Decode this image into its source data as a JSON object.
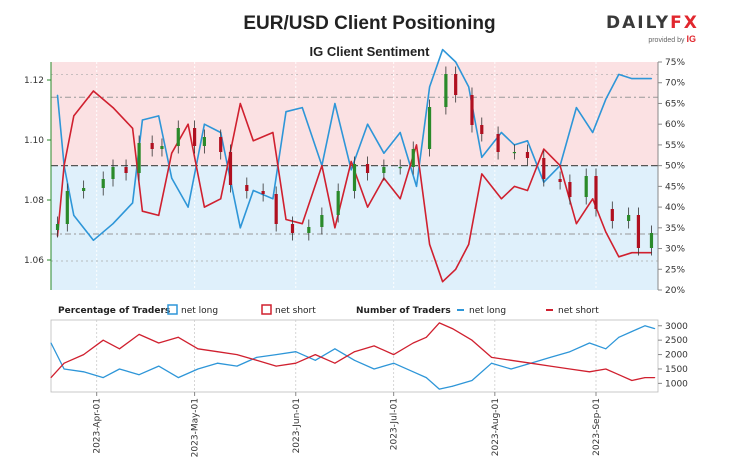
{
  "header": {
    "title": "EUR/USD Client Positioning",
    "subtitle": "IG Client Sentiment",
    "logo_main_a": "DAILY",
    "logo_main_b": "FX",
    "logo_sub": "provided by",
    "logo_ig": "IG"
  },
  "legend": {
    "pct_title": "Percentage of Traders",
    "pct_long": "net long",
    "pct_short": "net short",
    "num_title": "Number of Traders",
    "num_long": "net long",
    "num_short": "net short"
  },
  "colors": {
    "long": "#2e96d8",
    "short": "#d0202f",
    "long_fill": "#dff0fb",
    "short_fill": "#fbe1e3",
    "candle_up": "#2a8a2a",
    "candle_down": "#b01020"
  },
  "chart_data": [
    {
      "type": "line",
      "title": "EUR/USD Client Positioning",
      "subtitle": "IG Client Sentiment",
      "y_left_ticks": [
        "1.06",
        "1.08",
        "1.10",
        "1.12"
      ],
      "y_left_range": [
        1.05,
        1.126
      ],
      "y_right_ticks": [
        "20%",
        "25%",
        "30%",
        "35%",
        "40%",
        "45%",
        "50%",
        "55%",
        "60%",
        "65%",
        "70%",
        "75%"
      ],
      "y_right_range": [
        20,
        75
      ],
      "x_range": [
        "2023-03-18",
        "2023-09-20"
      ],
      "price_close": [
        {
          "date": "2023-03-20",
          "v": 1.072
        },
        {
          "date": "2023-03-23",
          "v": 1.083
        },
        {
          "date": "2023-03-28",
          "v": 1.084
        },
        {
          "date": "2023-04-03",
          "v": 1.087
        },
        {
          "date": "2023-04-06",
          "v": 1.091
        },
        {
          "date": "2023-04-10",
          "v": 1.089
        },
        {
          "date": "2023-04-14",
          "v": 1.099
        },
        {
          "date": "2023-04-18",
          "v": 1.097
        },
        {
          "date": "2023-04-21",
          "v": 1.098
        },
        {
          "date": "2023-04-26",
          "v": 1.104
        },
        {
          "date": "2023-05-01",
          "v": 1.098
        },
        {
          "date": "2023-05-04",
          "v": 1.101
        },
        {
          "date": "2023-05-09",
          "v": 1.096
        },
        {
          "date": "2023-05-12",
          "v": 1.085
        },
        {
          "date": "2023-05-17",
          "v": 1.083
        },
        {
          "date": "2023-05-22",
          "v": 1.082
        },
        {
          "date": "2023-05-26",
          "v": 1.072
        },
        {
          "date": "2023-05-31",
          "v": 1.069
        },
        {
          "date": "2023-06-05",
          "v": 1.071
        },
        {
          "date": "2023-06-09",
          "v": 1.075
        },
        {
          "date": "2023-06-14",
          "v": 1.083
        },
        {
          "date": "2023-06-19",
          "v": 1.092
        },
        {
          "date": "2023-06-23",
          "v": 1.089
        },
        {
          "date": "2023-06-28",
          "v": 1.091
        },
        {
          "date": "2023-07-03",
          "v": 1.091
        },
        {
          "date": "2023-07-07",
          "v": 1.097
        },
        {
          "date": "2023-07-12",
          "v": 1.111
        },
        {
          "date": "2023-07-17",
          "v": 1.122
        },
        {
          "date": "2023-07-20",
          "v": 1.115
        },
        {
          "date": "2023-07-25",
          "v": 1.105
        },
        {
          "date": "2023-07-28",
          "v": 1.102
        },
        {
          "date": "2023-08-02",
          "v": 1.096
        },
        {
          "date": "2023-08-07",
          "v": 1.096
        },
        {
          "date": "2023-08-11",
          "v": 1.094
        },
        {
          "date": "2023-08-16",
          "v": 1.087
        },
        {
          "date": "2023-08-21",
          "v": 1.086
        },
        {
          "date": "2023-08-24",
          "v": 1.081
        },
        {
          "date": "2023-08-29",
          "v": 1.088
        },
        {
          "date": "2023-09-01",
          "v": 1.077
        },
        {
          "date": "2023-09-06",
          "v": 1.073
        },
        {
          "date": "2023-09-11",
          "v": 1.075
        },
        {
          "date": "2023-09-14",
          "v": 1.064
        },
        {
          "date": "2023-09-18",
          "v": 1.069
        }
      ],
      "series": [
        {
          "name": "net long",
          "unit": "%",
          "values": [
            {
              "date": "2023-03-20",
              "v": 67
            },
            {
              "date": "2023-03-22",
              "v": 50
            },
            {
              "date": "2023-03-25",
              "v": 38
            },
            {
              "date": "2023-03-31",
              "v": 32
            },
            {
              "date": "2023-04-06",
              "v": 36
            },
            {
              "date": "2023-04-12",
              "v": 41
            },
            {
              "date": "2023-04-15",
              "v": 61
            },
            {
              "date": "2023-04-20",
              "v": 62
            },
            {
              "date": "2023-04-24",
              "v": 47
            },
            {
              "date": "2023-04-29",
              "v": 40
            },
            {
              "date": "2023-05-04",
              "v": 60
            },
            {
              "date": "2023-05-09",
              "v": 58
            },
            {
              "date": "2023-05-15",
              "v": 35
            },
            {
              "date": "2023-05-19",
              "v": 44
            },
            {
              "date": "2023-05-25",
              "v": 42
            },
            {
              "date": "2023-05-29",
              "v": 63
            },
            {
              "date": "2023-06-03",
              "v": 64
            },
            {
              "date": "2023-06-09",
              "v": 50
            },
            {
              "date": "2023-06-13",
              "v": 65
            },
            {
              "date": "2023-06-18",
              "v": 49
            },
            {
              "date": "2023-06-23",
              "v": 60
            },
            {
              "date": "2023-06-28",
              "v": 53
            },
            {
              "date": "2023-07-03",
              "v": 58
            },
            {
              "date": "2023-07-08",
              "v": 45
            },
            {
              "date": "2023-07-12",
              "v": 69
            },
            {
              "date": "2023-07-16",
              "v": 78
            },
            {
              "date": "2023-07-20",
              "v": 75
            },
            {
              "date": "2023-07-24",
              "v": 69
            },
            {
              "date": "2023-07-28",
              "v": 52
            },
            {
              "date": "2023-08-03",
              "v": 58
            },
            {
              "date": "2023-08-07",
              "v": 55
            },
            {
              "date": "2023-08-11",
              "v": 56
            },
            {
              "date": "2023-08-16",
              "v": 46
            },
            {
              "date": "2023-08-21",
              "v": 50
            },
            {
              "date": "2023-08-26",
              "v": 64
            },
            {
              "date": "2023-08-31",
              "v": 58
            },
            {
              "date": "2023-09-04",
              "v": 66
            },
            {
              "date": "2023-09-08",
              "v": 72
            },
            {
              "date": "2023-09-12",
              "v": 71
            },
            {
              "date": "2023-09-18",
              "v": 71
            }
          ]
        },
        {
          "name": "net short",
          "unit": "%",
          "values": [
            {
              "date": "2023-03-20",
              "v": 33
            },
            {
              "date": "2023-03-22",
              "v": 50
            },
            {
              "date": "2023-03-25",
              "v": 62
            },
            {
              "date": "2023-03-31",
              "v": 68
            },
            {
              "date": "2023-04-06",
              "v": 64
            },
            {
              "date": "2023-04-12",
              "v": 59
            },
            {
              "date": "2023-04-15",
              "v": 39
            },
            {
              "date": "2023-04-20",
              "v": 38
            },
            {
              "date": "2023-04-24",
              "v": 53
            },
            {
              "date": "2023-04-29",
              "v": 60
            },
            {
              "date": "2023-05-04",
              "v": 40
            },
            {
              "date": "2023-05-09",
              "v": 42
            },
            {
              "date": "2023-05-15",
              "v": 65
            },
            {
              "date": "2023-05-19",
              "v": 56
            },
            {
              "date": "2023-05-25",
              "v": 58
            },
            {
              "date": "2023-05-29",
              "v": 37
            },
            {
              "date": "2023-06-03",
              "v": 36
            },
            {
              "date": "2023-06-09",
              "v": 50
            },
            {
              "date": "2023-06-13",
              "v": 35
            },
            {
              "date": "2023-06-18",
              "v": 51
            },
            {
              "date": "2023-06-23",
              "v": 40
            },
            {
              "date": "2023-06-28",
              "v": 47
            },
            {
              "date": "2023-07-03",
              "v": 42
            },
            {
              "date": "2023-07-08",
              "v": 55
            },
            {
              "date": "2023-07-12",
              "v": 31
            },
            {
              "date": "2023-07-16",
              "v": 22
            },
            {
              "date": "2023-07-20",
              "v": 25
            },
            {
              "date": "2023-07-24",
              "v": 31
            },
            {
              "date": "2023-07-28",
              "v": 48
            },
            {
              "date": "2023-08-03",
              "v": 42
            },
            {
              "date": "2023-08-07",
              "v": 45
            },
            {
              "date": "2023-08-11",
              "v": 44
            },
            {
              "date": "2023-08-16",
              "v": 54
            },
            {
              "date": "2023-08-21",
              "v": 50
            },
            {
              "date": "2023-08-26",
              "v": 36
            },
            {
              "date": "2023-08-31",
              "v": 42
            },
            {
              "date": "2023-09-04",
              "v": 34
            },
            {
              "date": "2023-09-08",
              "v": 28
            },
            {
              "date": "2023-09-12",
              "v": 29
            },
            {
              "date": "2023-09-18",
              "v": 29
            }
          ]
        }
      ]
    },
    {
      "type": "line",
      "title": "Number of Traders",
      "y_ticks": [
        "1000",
        "1500",
        "2000",
        "2500",
        "3000"
      ],
      "y_range": [
        700,
        3200
      ],
      "x_ticks": [
        "2023-Apr-01",
        "2023-May-01",
        "2023-Jun-01",
        "2023-Jul-01",
        "2023-Aug-01",
        "2023-Sep-01"
      ],
      "series": [
        {
          "name": "net long",
          "values": [
            {
              "date": "2023-03-18",
              "v": 2400
            },
            {
              "date": "2023-03-22",
              "v": 1500
            },
            {
              "date": "2023-03-28",
              "v": 1400
            },
            {
              "date": "2023-04-03",
              "v": 1200
            },
            {
              "date": "2023-04-08",
              "v": 1500
            },
            {
              "date": "2023-04-14",
              "v": 1300
            },
            {
              "date": "2023-04-20",
              "v": 1600
            },
            {
              "date": "2023-04-26",
              "v": 1200
            },
            {
              "date": "2023-05-02",
              "v": 1500
            },
            {
              "date": "2023-05-08",
              "v": 1700
            },
            {
              "date": "2023-05-14",
              "v": 1600
            },
            {
              "date": "2023-05-20",
              "v": 1900
            },
            {
              "date": "2023-05-26",
              "v": 2000
            },
            {
              "date": "2023-06-01",
              "v": 2100
            },
            {
              "date": "2023-06-07",
              "v": 1800
            },
            {
              "date": "2023-06-13",
              "v": 2200
            },
            {
              "date": "2023-06-19",
              "v": 1800
            },
            {
              "date": "2023-06-25",
              "v": 1500
            },
            {
              "date": "2023-07-01",
              "v": 1700
            },
            {
              "date": "2023-07-07",
              "v": 1400
            },
            {
              "date": "2023-07-11",
              "v": 1200
            },
            {
              "date": "2023-07-15",
              "v": 800
            },
            {
              "date": "2023-07-19",
              "v": 900
            },
            {
              "date": "2023-07-25",
              "v": 1100
            },
            {
              "date": "2023-07-31",
              "v": 1700
            },
            {
              "date": "2023-08-06",
              "v": 1500
            },
            {
              "date": "2023-08-12",
              "v": 1700
            },
            {
              "date": "2023-08-18",
              "v": 1900
            },
            {
              "date": "2023-08-24",
              "v": 2100
            },
            {
              "date": "2023-08-30",
              "v": 2400
            },
            {
              "date": "2023-09-04",
              "v": 2200
            },
            {
              "date": "2023-09-08",
              "v": 2600
            },
            {
              "date": "2023-09-12",
              "v": 2800
            },
            {
              "date": "2023-09-16",
              "v": 3000
            },
            {
              "date": "2023-09-19",
              "v": 2900
            }
          ]
        },
        {
          "name": "net short",
          "values": [
            {
              "date": "2023-03-18",
              "v": 1200
            },
            {
              "date": "2023-03-22",
              "v": 1700
            },
            {
              "date": "2023-03-28",
              "v": 2000
            },
            {
              "date": "2023-04-03",
              "v": 2500
            },
            {
              "date": "2023-04-08",
              "v": 2200
            },
            {
              "date": "2023-04-14",
              "v": 2700
            },
            {
              "date": "2023-04-20",
              "v": 2400
            },
            {
              "date": "2023-04-26",
              "v": 2600
            },
            {
              "date": "2023-05-02",
              "v": 2200
            },
            {
              "date": "2023-05-08",
              "v": 2100
            },
            {
              "date": "2023-05-14",
              "v": 2000
            },
            {
              "date": "2023-05-20",
              "v": 1800
            },
            {
              "date": "2023-05-26",
              "v": 1600
            },
            {
              "date": "2023-06-01",
              "v": 1700
            },
            {
              "date": "2023-06-07",
              "v": 2000
            },
            {
              "date": "2023-06-13",
              "v": 1700
            },
            {
              "date": "2023-06-19",
              "v": 2100
            },
            {
              "date": "2023-06-25",
              "v": 2300
            },
            {
              "date": "2023-07-01",
              "v": 2000
            },
            {
              "date": "2023-07-07",
              "v": 2400
            },
            {
              "date": "2023-07-11",
              "v": 2600
            },
            {
              "date": "2023-07-15",
              "v": 3100
            },
            {
              "date": "2023-07-19",
              "v": 2900
            },
            {
              "date": "2023-07-25",
              "v": 2500
            },
            {
              "date": "2023-07-31",
              "v": 1900
            },
            {
              "date": "2023-08-06",
              "v": 1800
            },
            {
              "date": "2023-08-12",
              "v": 1700
            },
            {
              "date": "2023-08-18",
              "v": 1600
            },
            {
              "date": "2023-08-24",
              "v": 1500
            },
            {
              "date": "2023-08-30",
              "v": 1400
            },
            {
              "date": "2023-09-04",
              "v": 1500
            },
            {
              "date": "2023-09-08",
              "v": 1300
            },
            {
              "date": "2023-09-12",
              "v": 1100
            },
            {
              "date": "2023-09-16",
              "v": 1200
            },
            {
              "date": "2023-09-19",
              "v": 1200
            }
          ]
        }
      ]
    }
  ]
}
